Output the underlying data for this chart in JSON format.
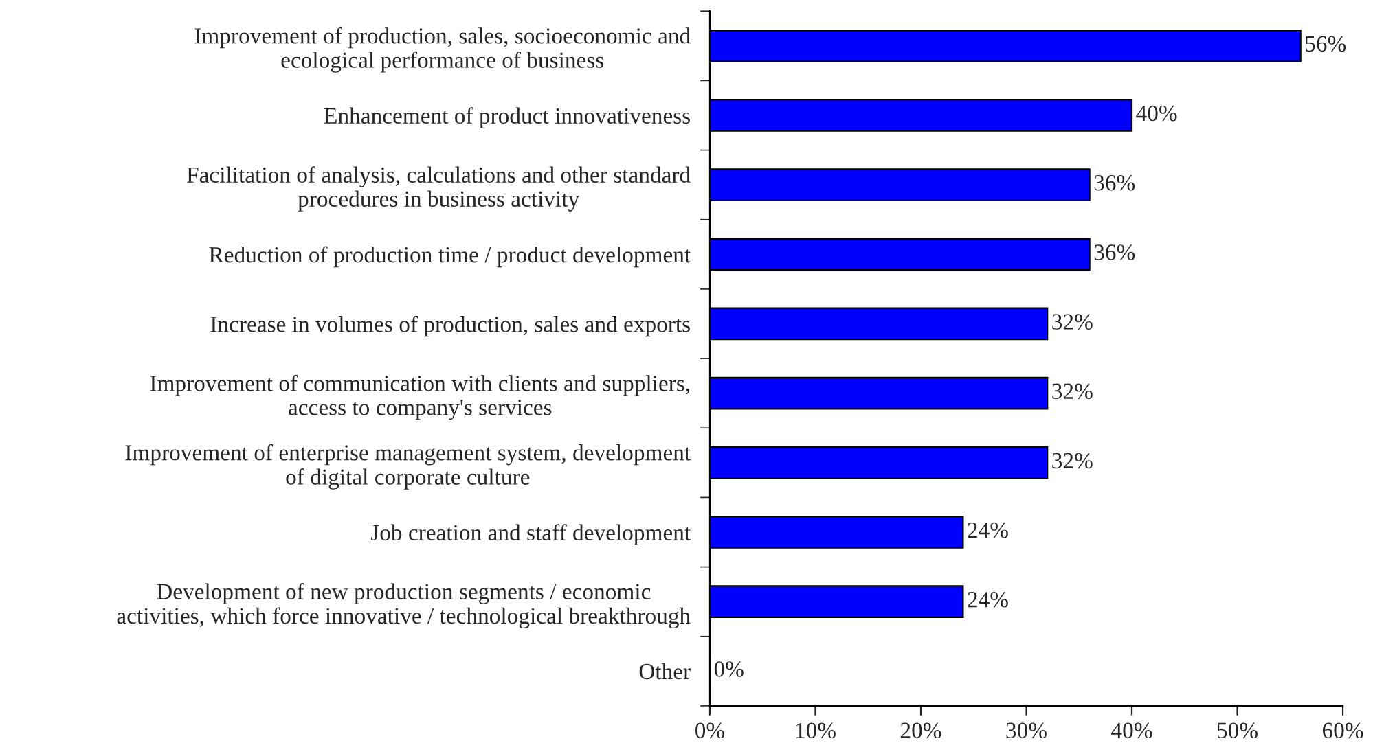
{
  "chart_data": {
    "type": "bar",
    "orientation": "horizontal",
    "categories": [
      "Improvement of production, sales, socioeconomic and\necological performance of business",
      "Enhancement of product innovativeness",
      "Facilitation of analysis, calculations and other standard\nprocedures in business activity",
      "Reduction of production time / product development",
      "Increase in volumes of production, sales and exports",
      "Improvement of communication with clients and suppliers,\naccess to company's services",
      "Improvement of enterprise management system, development\nof digital corporate culture",
      "Job creation and staff development",
      "Development of new production segments / economic\nactivities, which force innovative / technological breakthrough",
      "Other"
    ],
    "values": [
      56,
      40,
      36,
      36,
      32,
      32,
      32,
      24,
      24,
      0
    ],
    "value_labels": [
      "56%",
      "40%",
      "36%",
      "36%",
      "32%",
      "32%",
      "32%",
      "24%",
      "24%",
      "0%"
    ],
    "color": "#0000ff",
    "xlim": [
      0,
      60
    ],
    "xticks": [
      {
        "value": 0,
        "label": "0%"
      },
      {
        "value": 10,
        "label": "10%"
      },
      {
        "value": 20,
        "label": "20%"
      },
      {
        "value": 30,
        "label": "30%"
      },
      {
        "value": 40,
        "label": "40%"
      },
      {
        "value": 50,
        "label": "50%"
      },
      {
        "value": 60,
        "label": "60%"
      }
    ],
    "grid": false
  }
}
